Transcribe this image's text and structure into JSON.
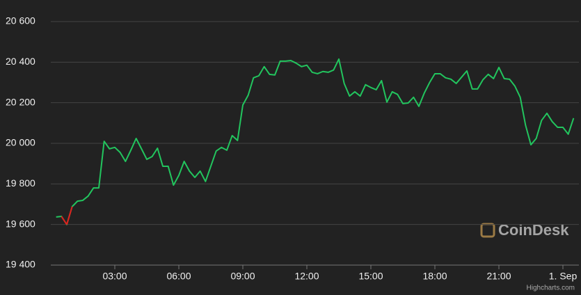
{
  "chart_data": {
    "type": "line",
    "x": [
      0.25,
      0.5,
      0.75,
      1,
      1.25,
      1.5,
      1.75,
      2,
      2.25,
      2.5,
      2.75,
      3,
      3.25,
      3.5,
      3.75,
      4,
      4.25,
      4.5,
      4.75,
      5,
      5.25,
      5.5,
      5.75,
      6,
      6.25,
      6.5,
      6.75,
      7,
      7.25,
      7.5,
      7.75,
      8,
      8.25,
      8.5,
      8.75,
      9,
      9.25,
      9.5,
      9.75,
      10,
      10.25,
      10.5,
      10.75,
      11,
      11.25,
      11.5,
      11.75,
      12,
      12.25,
      12.5,
      12.75,
      13,
      13.25,
      13.5,
      13.75,
      14,
      14.25,
      14.5,
      14.75,
      15,
      15.25,
      15.5,
      15.75,
      16,
      16.25,
      16.5,
      16.75,
      17,
      17.25,
      17.5,
      17.75,
      18,
      18.25,
      18.5,
      18.75,
      19,
      19.25,
      19.5,
      19.75,
      20,
      20.25,
      20.5,
      20.75,
      21,
      21.25,
      21.5,
      21.75,
      22,
      22.25,
      22.5,
      22.75,
      23,
      23.25,
      23.5,
      23.75,
      24,
      24.25,
      24.5
    ],
    "series": [
      {
        "color": "#22c55e",
        "values": [
          19637,
          19640,
          19600,
          19688,
          19715,
          19719,
          19740,
          19780,
          19780,
          20010,
          19973,
          19980,
          19955,
          19911,
          19966,
          20024,
          19973,
          19921,
          19935,
          19976,
          19887,
          19887,
          19794,
          19842,
          19911,
          19863,
          19832,
          19863,
          19812,
          19887,
          19962,
          19980,
          19966,
          20038,
          20014,
          20189,
          20237,
          20323,
          20333,
          20378,
          20340,
          20337,
          20405,
          20405,
          20408,
          20395,
          20378,
          20385,
          20350,
          20343,
          20354,
          20350,
          20361,
          20415,
          20295,
          20233,
          20254,
          20233,
          20289,
          20275,
          20264,
          20309,
          20203,
          20254,
          20241,
          20196,
          20199,
          20227,
          20182,
          20247,
          20299,
          20343,
          20343,
          20323,
          20316,
          20295,
          20326,
          20357,
          20268,
          20268,
          20313,
          20340,
          20319,
          20374,
          20319,
          20316,
          20282,
          20227,
          20089,
          19993,
          20024,
          20113,
          20148,
          20107,
          20079,
          20079,
          20045,
          20124
        ]
      }
    ],
    "zones": [
      {
        "from": 0.5,
        "to": 1,
        "color": "#e11d1d"
      }
    ],
    "xlim": [
      0,
      24.75
    ],
    "xticks": [
      {
        "value": 3,
        "label": "03:00"
      },
      {
        "value": 6,
        "label": "06:00"
      },
      {
        "value": 9,
        "label": "09:00"
      },
      {
        "value": 12,
        "label": "12:00"
      },
      {
        "value": 15,
        "label": "15:00"
      },
      {
        "value": 18,
        "label": "18:00"
      },
      {
        "value": 21,
        "label": "21:00"
      },
      {
        "value": 24,
        "label": "1. Sep"
      }
    ],
    "ylim": [
      19400,
      20600
    ],
    "yticks": [
      {
        "value": 19400,
        "label": "19 400"
      },
      {
        "value": 19600,
        "label": "19 600"
      },
      {
        "value": 19800,
        "label": "19 800"
      },
      {
        "value": 20000,
        "label": "20 000"
      },
      {
        "value": 20200,
        "label": "20 200"
      },
      {
        "value": 20400,
        "label": "20 400"
      },
      {
        "value": 20600,
        "label": "20 600"
      }
    ],
    "grid": true,
    "watermark": "CoinDesk",
    "credit": "Highcharts.com"
  }
}
